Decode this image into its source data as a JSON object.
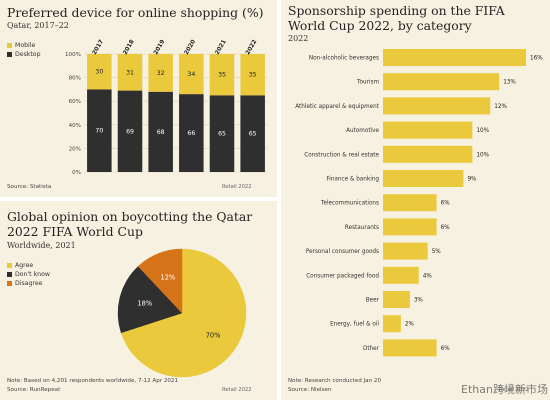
{
  "colors": {
    "yellow": "#ebc93d",
    "dark": "#2f2f2f",
    "orange": "#d6741a",
    "panel": "#f7f1e1"
  },
  "panel1": {
    "title": "Preferred device for online shopping (%)",
    "subtitle": "Qatar, 2017–22",
    "source": "Source: Statista",
    "credit": "Retail 2022",
    "legend": [
      "Mobile",
      "Desktop"
    ]
  },
  "panel2": {
    "title_line1": "Global opinion on boycotting the Qatar",
    "title_line2": "2022 FIFA World Cup",
    "subtitle": "Worldwide, 2021",
    "note": "Note: Based on 4,201 respondents worldwide, 7-12 Apr 2021",
    "source": "Source: RunRepeat",
    "credit": "Retail 2022"
  },
  "panel3": {
    "title_line1": "Sponsorship spending on the FIFA",
    "title_line2": "World Cup 2022, by category",
    "subtitle": "2022",
    "note": "Note: Research conducted Jan 20",
    "source": "Source: Nielsen",
    "credit": "Retail 2022"
  },
  "watermark": "Ethan跨境新市场",
  "chart_data": [
    {
      "type": "bar",
      "stacked": true,
      "title": "Preferred device for online shopping (%)",
      "categories": [
        "2017",
        "2018",
        "2019",
        "2020",
        "2021",
        "2022"
      ],
      "series": [
        {
          "name": "Desktop",
          "values": [
            70,
            69,
            68,
            66,
            65,
            65
          ],
          "color": "#2f2f2f"
        },
        {
          "name": "Mobile",
          "values": [
            30,
            31,
            32,
            34,
            35,
            35
          ],
          "color": "#ebc93d"
        }
      ],
      "ylim": [
        0,
        100
      ],
      "yticks": [
        "0%",
        "20%",
        "40%",
        "60%",
        "80%",
        "100%"
      ],
      "legend_position": "left"
    },
    {
      "type": "pie",
      "title": "Global opinion on boycotting the Qatar 2022 FIFA World Cup",
      "labels": [
        "Agree",
        "Don't know",
        "Disagree"
      ],
      "values": [
        70,
        18,
        12
      ],
      "value_labels": [
        "70%",
        "18%",
        "12%"
      ],
      "colors": [
        "#ebc93d",
        "#2f2f2f",
        "#d6741a"
      ],
      "legend_position": "top-left"
    },
    {
      "type": "bar",
      "orientation": "horizontal",
      "title": "Sponsorship spending on the FIFA World Cup 2022, by category",
      "categories": [
        "Non-alcoholic beverages",
        "Tourism",
        "Athletic apparel & equipment",
        "Automotive",
        "Construction & real estate",
        "Finance & banking",
        "Telecommunications",
        "Restaurants",
        "Personal consumer goods",
        "Consumer packaged food",
        "Beer",
        "Energy, fuel & oil",
        "Other"
      ],
      "values": [
        16,
        13,
        12,
        10,
        10,
        9,
        6,
        6,
        5,
        4,
        3,
        2,
        6
      ],
      "value_labels": [
        "16%",
        "13%",
        "12%",
        "10%",
        "10%",
        "9%",
        "6%",
        "6%",
        "5%",
        "4%",
        "3%",
        "2%",
        "6%"
      ],
      "color": "#ebc93d"
    }
  ]
}
